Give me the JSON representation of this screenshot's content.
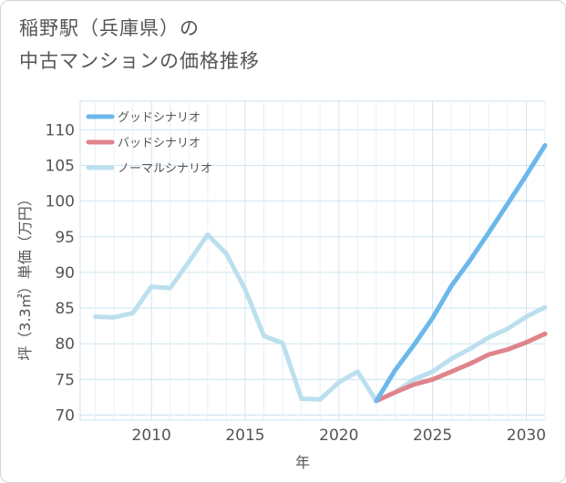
{
  "chart_data": {
    "type": "line",
    "title_line1": "稲野駅（兵庫県）の",
    "title_line2": "中古マンションの価格推移",
    "xlabel": "年",
    "ylabel": "坪（3.3㎡）単価（万円）",
    "xlim": [
      2006.2,
      2031
    ],
    "ylim": [
      69.3,
      114
    ],
    "x_ticks": [
      2010,
      2015,
      2020,
      2025,
      2030
    ],
    "y_ticks": [
      70,
      75,
      80,
      85,
      90,
      95,
      100,
      105,
      110
    ],
    "grid": true,
    "legend_position": "top-left",
    "series": [
      {
        "name": "グッドシナリオ",
        "color": "#6cb8ea",
        "x": [
          2022,
          2023,
          2024,
          2025,
          2026,
          2027,
          2028,
          2029,
          2030,
          2031
        ],
        "values": [
          72.0,
          76.3,
          79.8,
          83.6,
          88.1,
          91.7,
          95.6,
          99.6,
          103.6,
          107.8
        ]
      },
      {
        "name": "バッドシナリオ",
        "color": "#e0848c",
        "x": [
          2022,
          2023,
          2024,
          2025,
          2026,
          2027,
          2028,
          2029,
          2030,
          2031
        ],
        "values": [
          72.0,
          73.2,
          74.3,
          75.0,
          76.1,
          77.2,
          78.5,
          79.2,
          80.2,
          81.4
        ]
      },
      {
        "name": "ノーマルシナリオ",
        "color": "#bcdfee",
        "x": [
          2007,
          2008,
          2009,
          2010,
          2011,
          2012,
          2013,
          2014,
          2015,
          2016,
          2017,
          2018,
          2019,
          2020,
          2021,
          2022,
          2023,
          2024,
          2025,
          2026,
          2027,
          2028,
          2029,
          2030,
          2031
        ],
        "values": [
          83.8,
          83.7,
          84.3,
          88.0,
          87.8,
          91.5,
          95.3,
          92.6,
          87.6,
          81.1,
          80.1,
          72.3,
          72.2,
          74.6,
          76.1,
          72.0,
          73.2,
          75.0,
          76.1,
          77.9,
          79.3,
          80.9,
          82.1,
          83.8,
          85.1
        ]
      }
    ]
  }
}
